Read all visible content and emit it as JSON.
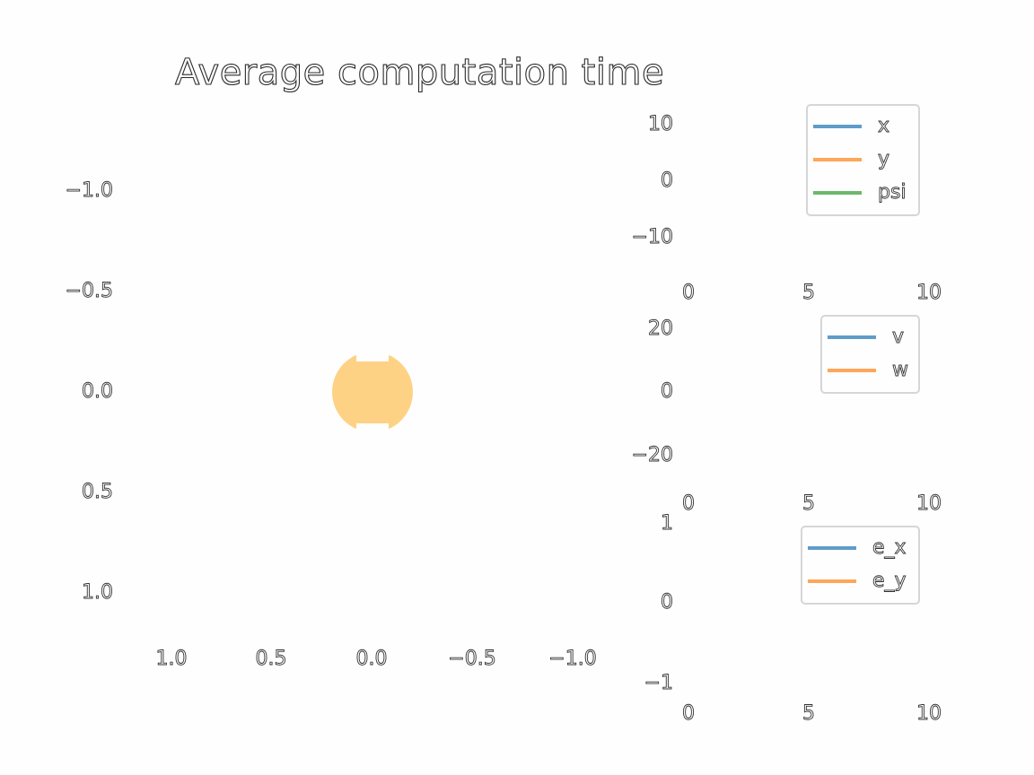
{
  "chart_data": [
    {
      "type": "scatter",
      "title": "Average computation time",
      "xlim": [
        1.0,
        -1.0
      ],
      "ylim": [
        -1.0,
        1.0
      ],
      "x_ticks": [
        "1.0",
        "0.5",
        "0.0",
        "−0.5",
        "−1.0"
      ],
      "y_ticks": [
        "−1.0",
        "−0.5",
        "0.0",
        "0.5",
        "1.0"
      ],
      "points": [
        {
          "x": 0.0,
          "y": 0.0,
          "color": "#fed285"
        }
      ],
      "grid": false
    },
    {
      "type": "line",
      "xlim": [
        0,
        10
      ],
      "ylim": [
        -15,
        15
      ],
      "x_ticks": [
        "0",
        "5",
        "10"
      ],
      "y_ticks": [
        "10",
        "0",
        "−10"
      ],
      "legend": "top-right",
      "series": [
        {
          "name": "x",
          "color": "#1f77b4"
        },
        {
          "name": "y",
          "color": "#ff7f0e"
        },
        {
          "name": "psi",
          "color": "#2ca02c"
        }
      ]
    },
    {
      "type": "line",
      "xlim": [
        0,
        10
      ],
      "ylim": [
        -25,
        25
      ],
      "x_ticks": [
        "0",
        "5",
        "10"
      ],
      "y_ticks": [
        "20",
        "0",
        "−20"
      ],
      "legend": "top-right",
      "series": [
        {
          "name": "v",
          "color": "#1f77b4"
        },
        {
          "name": "w",
          "color": "#ff7f0e"
        }
      ]
    },
    {
      "type": "line",
      "xlim": [
        0,
        10
      ],
      "ylim": [
        -1,
        1
      ],
      "x_ticks": [
        "0",
        "5",
        "10"
      ],
      "y_ticks": [
        "1",
        "0",
        "−1"
      ],
      "legend": "top-right",
      "series": [
        {
          "name": "e_x",
          "color": "#1f77b4"
        },
        {
          "name": "e_y",
          "color": "#ff7f0e"
        }
      ]
    }
  ]
}
